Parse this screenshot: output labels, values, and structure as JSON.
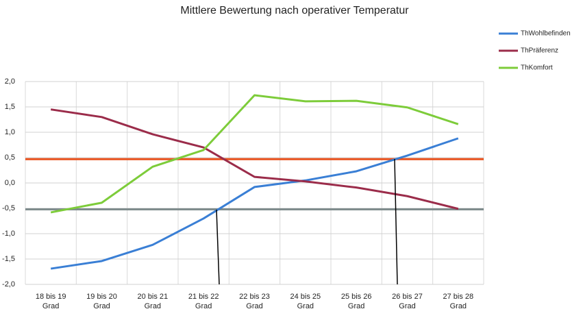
{
  "chart_data": {
    "type": "line",
    "title": "Mittlere Bewertung nach operativer Temperatur",
    "categories": [
      "18 bis 19 Grad",
      "19 bis 20 Grad",
      "20 bis 21 Grad",
      "21 bis 22 Grad",
      "22 bis 23 Grad",
      "24 bis 25 Grad",
      "25 bis 26 Grad",
      "26 bis 27 Grad",
      "27 bis 28 Grad"
    ],
    "series": [
      {
        "name": "ThWohlbefinden",
        "color": "#3a7fd5",
        "values": [
          -1.69,
          -1.54,
          -1.22,
          -0.7,
          -0.08,
          0.05,
          0.23,
          0.54,
          0.88
        ]
      },
      {
        "name": "ThPräferenz",
        "color": "#9b2c4a",
        "values": [
          1.45,
          1.3,
          0.96,
          0.7,
          0.12,
          0.03,
          -0.09,
          -0.26,
          -0.51
        ]
      },
      {
        "name": "ThKomfort",
        "color": "#7dcc3a",
        "values": [
          -0.58,
          -0.39,
          0.32,
          0.65,
          1.73,
          1.61,
          1.62,
          1.49,
          1.16
        ]
      }
    ],
    "reference_lines": [
      {
        "value": 0.47,
        "color": "#e8501c"
      },
      {
        "value": -0.52,
        "color": "#7f8c8d"
      }
    ],
    "ylim": [
      -2,
      2
    ],
    "yticks": [
      {
        "value": 2,
        "label": "2,0"
      },
      {
        "value": 1.5,
        "label": "1,5"
      },
      {
        "value": 1,
        "label": "1,0"
      },
      {
        "value": 0.5,
        "label": "0,5"
      },
      {
        "value": 0,
        "label": "0,0"
      },
      {
        "value": -0.5,
        "label": "-0,5"
      },
      {
        "value": -1,
        "label": "-1,0"
      },
      {
        "value": -1.5,
        "label": "-1,5"
      },
      {
        "value": -2,
        "label": "-2,0"
      }
    ],
    "grid": true,
    "legend": "top-right"
  }
}
